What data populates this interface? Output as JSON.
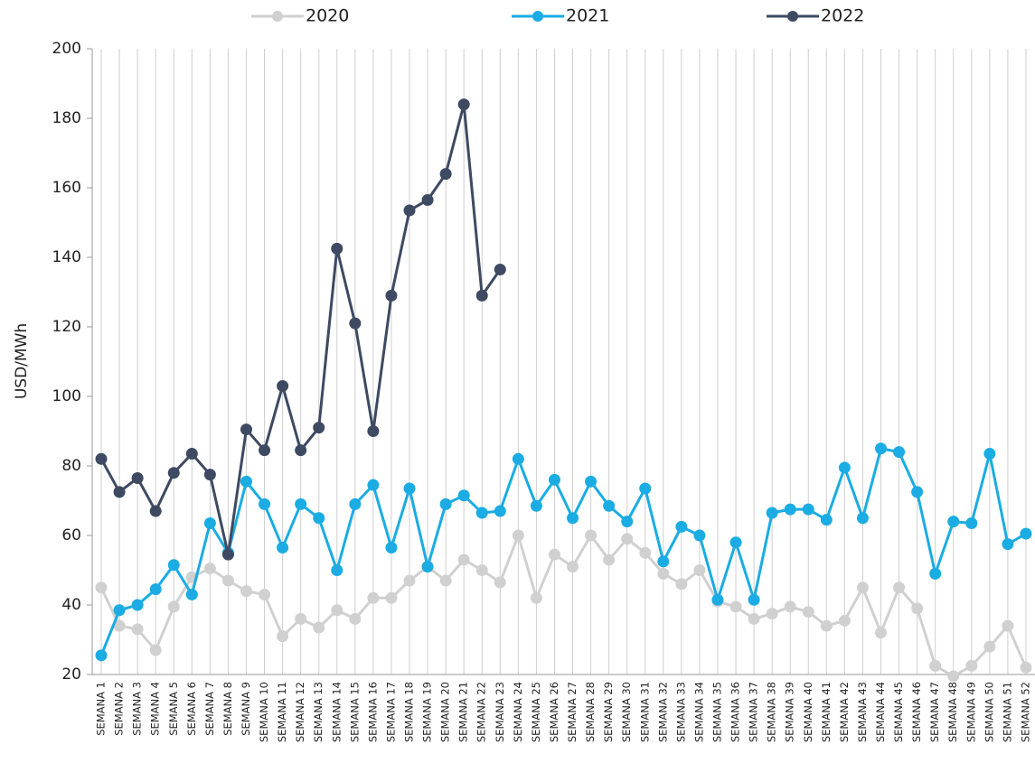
{
  "chart_data": {
    "type": "line",
    "y_label": "USD/MWh",
    "categories": [
      "SEMANA 1",
      "SEMANA 2",
      "SEMANA 3",
      "SEMANA 4",
      "SEMANA 5",
      "SEMANA 6",
      "SEMANA 7",
      "SEMANA 8",
      "SEMANA 9",
      "SEMANA 10",
      "SEMANA 11",
      "SEMANA 12",
      "SEMANA 13",
      "SEMANA 14",
      "SEMANA 15",
      "SEMANA 16",
      "SEMANA 17",
      "SEMANA 18",
      "SEMANA 19",
      "SEMANA 20",
      "SEMANA 21",
      "SEMANA 22",
      "SEMANA 23",
      "SEMANA 24",
      "SEMANA 25",
      "SEMANA 26",
      "SEMANA 27",
      "SEMANA 28",
      "SEMANA 29",
      "SEMANA 30",
      "SEMANA 31",
      "SEMANA 32",
      "SEMANA 33",
      "SEMANA 34",
      "SEMANA 35",
      "SEMANA 36",
      "SEMANA 37",
      "SEMANA 38",
      "SEMANA 39",
      "SEMANA 40",
      "SEMANA 41",
      "SEMANA 42",
      "SEMANA 43",
      "SEMANA 44",
      "SEMANA 45",
      "SEMANA 46",
      "SEMANA 47",
      "SEMANA 48",
      "SEMANA 49",
      "SEMANA 50",
      "SEMANA 51",
      "SEMANA 52"
    ],
    "series": [
      {
        "name": "2020",
        "color": "#d0d0d0",
        "values": [
          45,
          34,
          33,
          27,
          39.5,
          48,
          50.5,
          47,
          44,
          43,
          31,
          36,
          33.5,
          38.5,
          36,
          42,
          42,
          47,
          51,
          47,
          53,
          50,
          46.5,
          60,
          42,
          54.5,
          51,
          60,
          53,
          59,
          55,
          49,
          46,
          50,
          41,
          39.5,
          36,
          37.5,
          39.5,
          38,
          34,
          35.5,
          45,
          32,
          45,
          39,
          22.5,
          19.5,
          22.5,
          28,
          34,
          22
        ]
      },
      {
        "name": "2021",
        "color": "#1aace3",
        "values": [
          25.5,
          38.5,
          40,
          44.5,
          51.5,
          43,
          63.5,
          55,
          75.5,
          69,
          56.5,
          69,
          65,
          50,
          69,
          74.5,
          56.5,
          73.5,
          51,
          69,
          71.5,
          66.5,
          67,
          82,
          68.5,
          76,
          65,
          75.5,
          68.5,
          64,
          73.5,
          52.5,
          62.5,
          60,
          41.5,
          58,
          41.5,
          66.5,
          67.5,
          67.5,
          64.5,
          79.5,
          65,
          85,
          84,
          72.5,
          49,
          64,
          63.5,
          83.5,
          57.5,
          60.5
        ]
      },
      {
        "name": "2022",
        "color": "#3d4a62",
        "values": [
          82,
          72.5,
          76.5,
          67,
          78,
          83.5,
          77.5,
          54.5,
          90.5,
          84.5,
          103,
          84.5,
          91,
          142.5,
          121,
          90,
          129,
          153.5,
          156.5,
          164,
          184,
          129,
          136.5,
          null,
          null,
          null,
          null,
          null,
          null,
          null,
          null,
          null,
          null,
          null,
          null,
          null,
          null,
          null,
          null,
          null,
          null,
          null,
          null,
          null,
          null,
          null,
          null,
          null,
          null,
          null,
          null,
          null
        ]
      }
    ],
    "ylim": [
      20,
      200
    ],
    "yticks": [
      20,
      40,
      60,
      80,
      100,
      120,
      140,
      160,
      180,
      200
    ],
    "grid": true,
    "legend": "top"
  }
}
